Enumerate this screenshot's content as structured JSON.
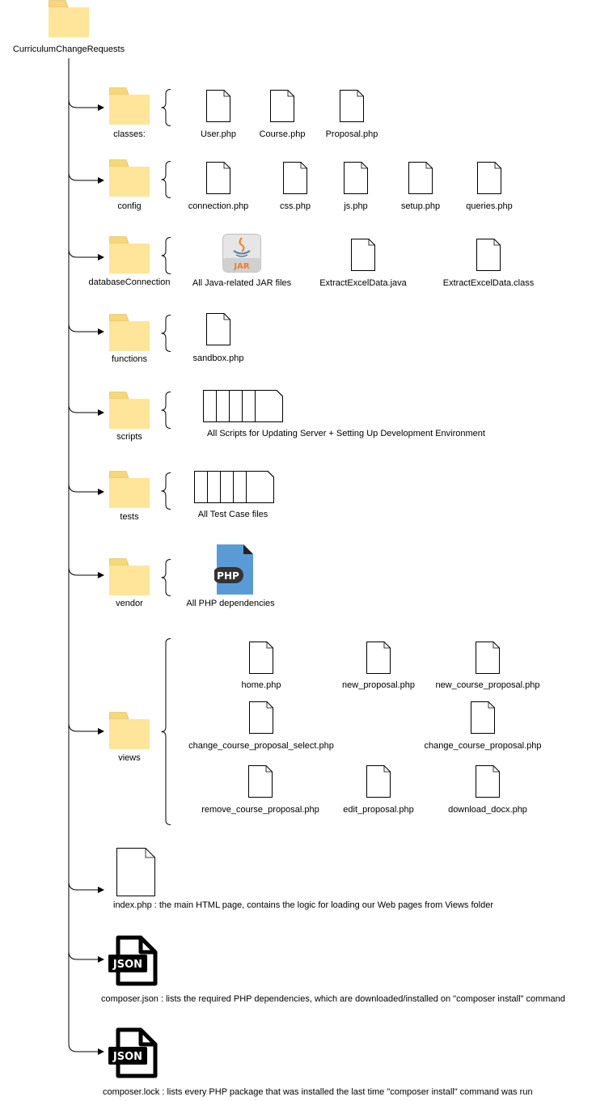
{
  "root": {
    "label": "CurriculumChangeRequests"
  },
  "folders": [
    {
      "label": "classes:",
      "files": [
        "User.php",
        "Course.php",
        "Proposal.php"
      ]
    },
    {
      "label": "config",
      "files": [
        "connection.php",
        "css.php",
        "js.php",
        "setup.php",
        "queries.php"
      ]
    },
    {
      "label": "databaseConnection",
      "files": [
        "All Java-related JAR files",
        "ExtractExcelData.java",
        "ExtractExcelData.class"
      ]
    },
    {
      "label": "functions",
      "files": [
        "sandbox.php"
      ]
    },
    {
      "label": "scripts",
      "files": [
        "All Scripts for Updating Server + Setting Up Development Environment"
      ]
    },
    {
      "label": "tests",
      "files": [
        "All Test Case files"
      ]
    },
    {
      "label": "vendor",
      "files": [
        "All PHP dependencies"
      ]
    },
    {
      "label": "views",
      "files": [
        "home.php",
        "new_proposal.php",
        "new_course_proposal.php",
        "change_course_proposal_select.php",
        "change_course_proposal.php",
        "remove_course_proposal.php",
        "edit_proposal.php",
        "download_docx.php"
      ]
    }
  ],
  "root_files": [
    {
      "label": "index.php : the main HTML page, contains the logic for loading our Web pages from Views folder",
      "icon": "document-icon"
    },
    {
      "label": "composer.json : lists the required PHP dependencies, which are downloaded/installed on \"composer install\" command",
      "icon": "json-file-icon",
      "badge": "JSON"
    },
    {
      "label": "composer.lock : lists every PHP package that was installed the last time \"composer install\" command was run",
      "icon": "json-file-icon",
      "badge": "JSON"
    }
  ],
  "badges": {
    "jar": "JAR",
    "php": "PHP"
  },
  "colors": {
    "folder": "#ffe599",
    "folder_tab": "#f6d77a",
    "folder_edge": "#d6b656",
    "php_blue": "#5b9bd5",
    "jar_orange": "#f07e2a"
  }
}
